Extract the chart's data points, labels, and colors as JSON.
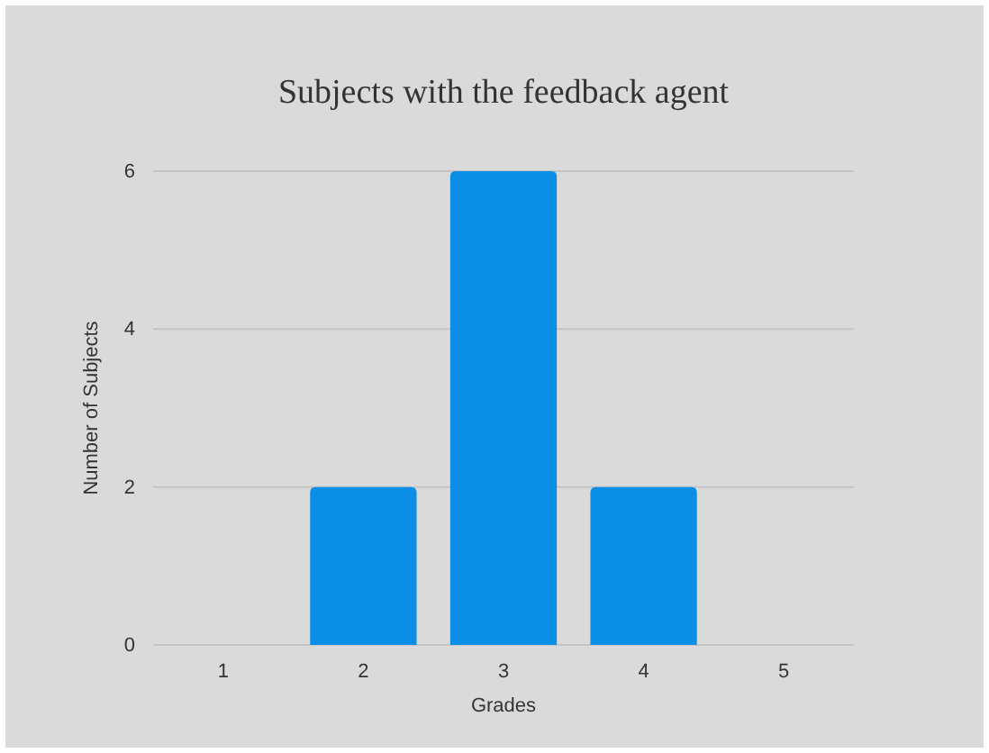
{
  "chart_data": {
    "type": "bar",
    "title": "Subjects with the feedback agent",
    "xlabel": "Grades",
    "ylabel": "Number of Subjects",
    "categories": [
      "1",
      "2",
      "3",
      "4",
      "5"
    ],
    "values": [
      0,
      2,
      6,
      2,
      0
    ],
    "color": "#0b8fe6",
    "ylim": [
      0,
      6
    ],
    "yticks": [
      0,
      2,
      4,
      6
    ],
    "grid": "y"
  }
}
